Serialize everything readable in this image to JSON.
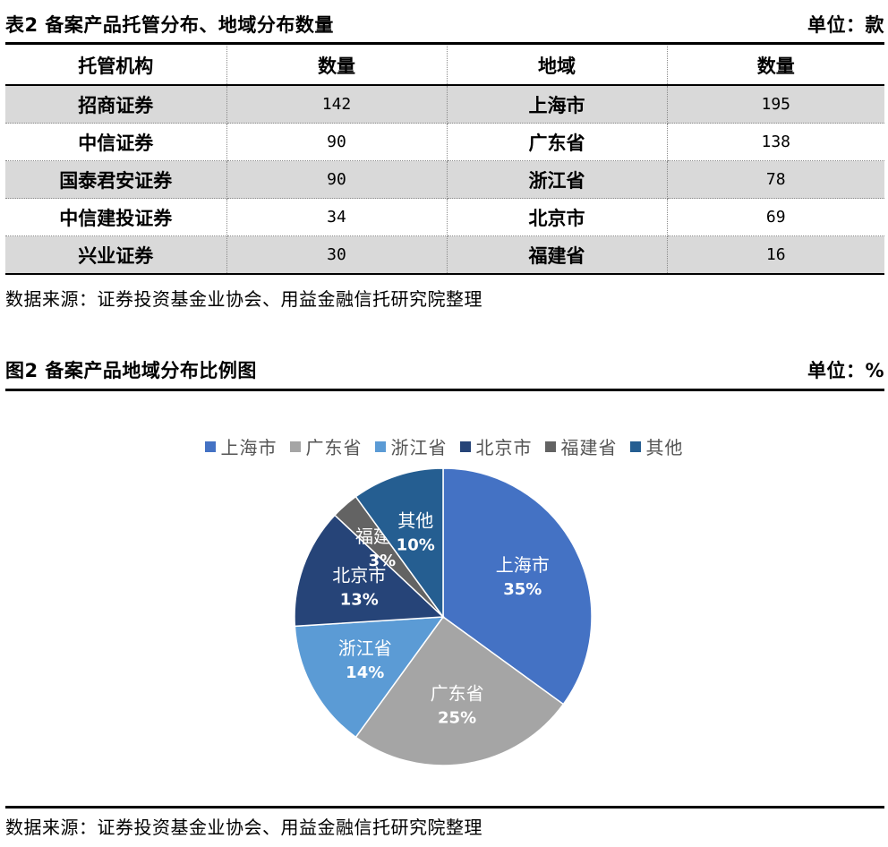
{
  "table": {
    "caption": "表2 备案产品托管分布、地域分布数量",
    "unit": "单位：款",
    "headers": [
      "托管机构",
      "数量",
      "地域",
      "数量"
    ],
    "rows": [
      {
        "custodian": "招商证券",
        "custodian_count": "142",
        "region": "上海市",
        "region_count": "195"
      },
      {
        "custodian": "中信证券",
        "custodian_count": "90",
        "region": "广东省",
        "region_count": "138"
      },
      {
        "custodian": "国泰君安证券",
        "custodian_count": "90",
        "region": "浙江省",
        "region_count": "78"
      },
      {
        "custodian": "中信建投证券",
        "custodian_count": "34",
        "region": "北京市",
        "region_count": "69"
      },
      {
        "custodian": "兴业证券",
        "custodian_count": "30",
        "region": "福建省",
        "region_count": "16"
      }
    ],
    "source": "数据来源：证券投资基金业协会、用益金融信托研究院整理"
  },
  "figure": {
    "caption": "图2 备案产品地域分布比例图",
    "unit": "单位：%",
    "source": "数据来源：证券投资基金业协会、用益金融信托研究院整理"
  },
  "chart_data": {
    "type": "pie",
    "title": "",
    "legend_position": "top",
    "slices": [
      {
        "name": "上海市",
        "value": 35,
        "label": "35%",
        "color": "#4472c4"
      },
      {
        "name": "广东省",
        "value": 25,
        "label": "25%",
        "color": "#a5a5a5"
      },
      {
        "name": "浙江省",
        "value": 14,
        "label": "14%",
        "color": "#5b9bd5"
      },
      {
        "name": "北京市",
        "value": 13,
        "label": "13%",
        "color": "#264478"
      },
      {
        "name": "福建省",
        "value": 3,
        "label": "3%",
        "color": "#636363"
      },
      {
        "name": "其他",
        "value": 10,
        "label": "10%",
        "color": "#255e91"
      }
    ]
  }
}
